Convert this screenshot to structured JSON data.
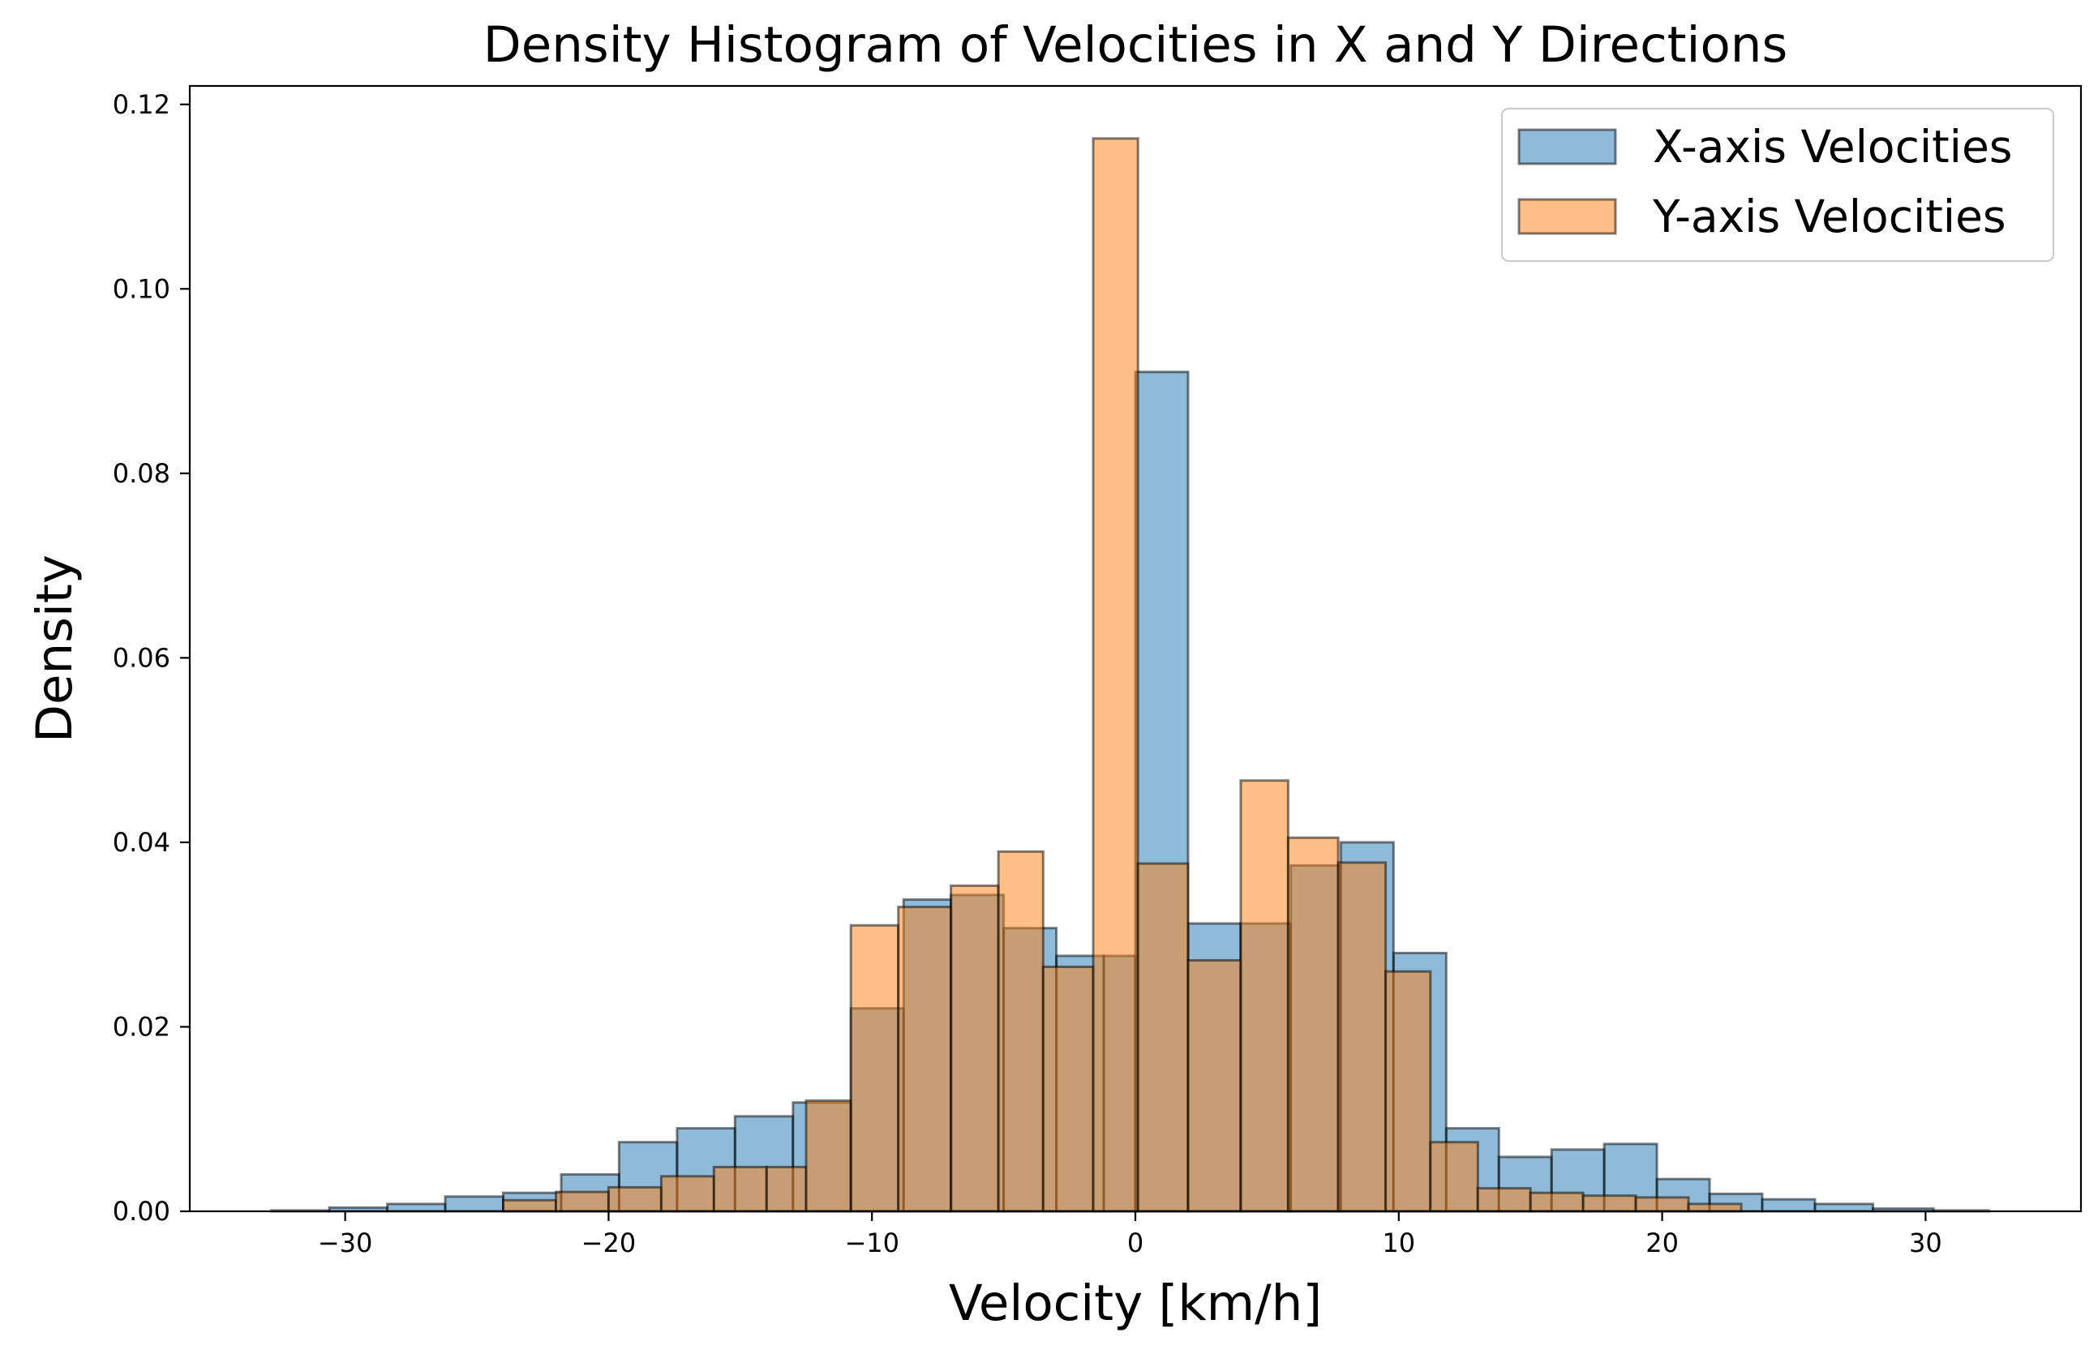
{
  "chart_data": {
    "type": "bar",
    "title": "Density Histogram of Velocities in X and Y Directions",
    "xlabel": "Velocity [km/h]",
    "ylabel": "Density",
    "xlim": [
      -35.9,
      35.9
    ],
    "ylim": [
      0,
      0.122
    ],
    "x_ticks": [
      -30,
      -20,
      -10,
      0,
      10,
      20,
      30
    ],
    "x_tick_labels": [
      "−30",
      "−20",
      "−10",
      "0",
      "10",
      "20",
      "30"
    ],
    "y_ticks": [
      0,
      0.02,
      0.04,
      0.06,
      0.08,
      0.1,
      0.12
    ],
    "y_tick_labels": [
      "0.00",
      "0.02",
      "0.04",
      "0.06",
      "0.08",
      "0.10",
      "0.12"
    ],
    "grid": false,
    "legend": "top-right",
    "series": [
      {
        "name": "X-axis Velocities",
        "color": "#1f77b4",
        "bin_edges": [
          -32.8,
          -30.6,
          -28.4,
          -26.2,
          -24.0,
          -21.8,
          -19.6,
          -17.4,
          -15.2,
          -13.0,
          -10.8,
          -8.8,
          -7.0,
          -5.0,
          -3.0,
          -1.2,
          0.0,
          2.0,
          4.0,
          5.9,
          7.8,
          9.8,
          11.8,
          13.8,
          15.8,
          17.8,
          19.8,
          21.8,
          23.8,
          25.8,
          28.0,
          30.3,
          32.4
        ],
        "values": [
          0.0001,
          0.0004,
          0.0008,
          0.0016,
          0.002,
          0.004,
          0.0075,
          0.009,
          0.0103,
          0.0118,
          0.022,
          0.0338,
          0.0343,
          0.0307,
          0.0277,
          0.0277,
          0.091,
          0.0312,
          0.0312,
          0.0375,
          0.04,
          0.028,
          0.009,
          0.0059,
          0.0067,
          0.0073,
          0.0035,
          0.0019,
          0.0013,
          0.0008,
          0.0003,
          0.0001
        ]
      },
      {
        "name": "Y-axis Velocities",
        "color": "#ff7f0e",
        "bin_edges": [
          -24.0,
          -22.0,
          -20.0,
          -18.0,
          -16.0,
          -14.0,
          -12.5,
          -10.8,
          -9.0,
          -7.0,
          -5.2,
          -3.5,
          -1.6,
          0.1,
          2.0,
          4.0,
          5.8,
          7.7,
          9.5,
          11.2,
          13.0,
          15.0,
          17.0,
          19.0,
          21.0,
          23.0
        ],
        "values": [
          0.0012,
          0.0021,
          0.0026,
          0.0038,
          0.0048,
          0.0048,
          0.012,
          0.031,
          0.033,
          0.0353,
          0.039,
          0.0265,
          0.1163,
          0.0377,
          0.0272,
          0.0467,
          0.0405,
          0.0378,
          0.026,
          0.0075,
          0.0025,
          0.002,
          0.0017,
          0.0015,
          0.0008
        ]
      }
    ]
  }
}
